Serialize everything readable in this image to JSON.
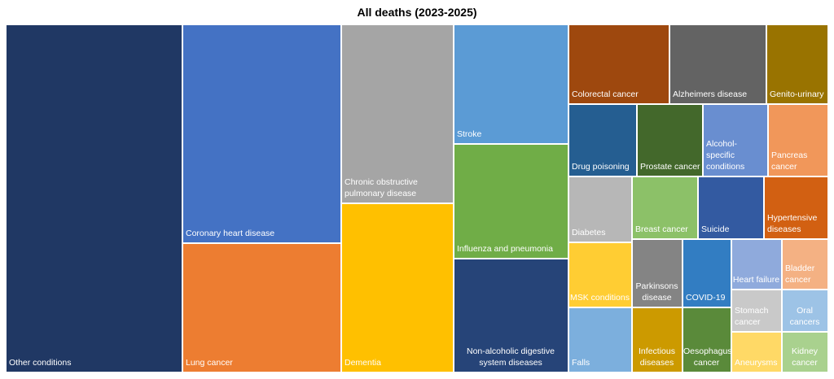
{
  "chart_data": {
    "type": "treemap",
    "title": "All deaths (2023-2025)",
    "tiles": [
      {
        "label": "Other conditions",
        "color": "#203864"
      },
      {
        "label": "Coronary heart disease",
        "color": "#4472C4"
      },
      {
        "label": "Lung cancer",
        "color": "#ED7D31"
      },
      {
        "label": "Chronic obstructive pulmonary disease",
        "color": "#A5A5A5"
      },
      {
        "label": "Dementia",
        "color": "#FFC000"
      },
      {
        "label": "Stroke",
        "color": "#5B9BD5"
      },
      {
        "label": "Influenza and pneumonia",
        "color": "#70AD47"
      },
      {
        "label": "Non-alcoholic digestive system diseases",
        "color": "#264478"
      },
      {
        "label": "Colorectal cancer",
        "color": "#9E480E"
      },
      {
        "label": "Alzheimers disease",
        "color": "#636363"
      },
      {
        "label": "Genito-urinary",
        "color": "#997300"
      },
      {
        "label": "Drug poisoning",
        "color": "#255E91"
      },
      {
        "label": "Prostate cancer",
        "color": "#43682B"
      },
      {
        "label": "Alcohol-specific conditions",
        "color": "#698ED0"
      },
      {
        "label": "Pancreas cancer",
        "color": "#F1975A"
      },
      {
        "label": "Diabetes",
        "color": "#B7B7B7"
      },
      {
        "label": "Breast cancer",
        "color": "#8CC168"
      },
      {
        "label": "Suicide",
        "color": "#335AA1"
      },
      {
        "label": "Hypertensive diseases",
        "color": "#D26012"
      },
      {
        "label": "MSK conditions",
        "color": "#FFCD33"
      },
      {
        "label": "Parkinsons disease",
        "color": "#848484"
      },
      {
        "label": "COVID-19",
        "color": "#327DC2"
      },
      {
        "label": "Heart failure",
        "color": "#8FAADC"
      },
      {
        "label": "Bladder cancer",
        "color": "#F4B183"
      },
      {
        "label": "Falls",
        "color": "#7CAFDD"
      },
      {
        "label": "Infectious diseases",
        "color": "#CC9A00"
      },
      {
        "label": "Oesophagus cancer",
        "color": "#5A8A3A"
      },
      {
        "label": "Stomach cancer",
        "color": "#C9C9C9"
      },
      {
        "label": "Oral cancers",
        "color": "#9DC3E6"
      },
      {
        "label": "Aneurysms",
        "color": "#FFD966"
      },
      {
        "label": "Kidney cancer",
        "color": "#A9D18E"
      }
    ]
  }
}
